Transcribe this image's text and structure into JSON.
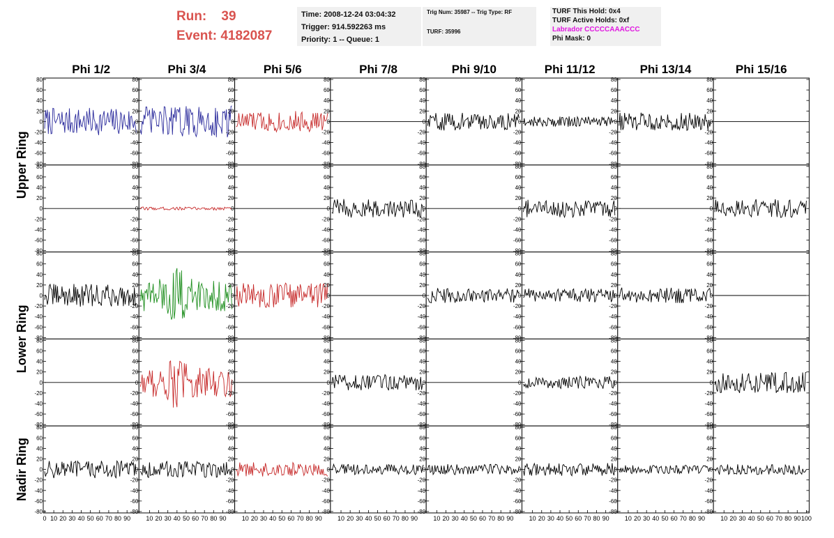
{
  "header": {
    "run_label": "Run:",
    "run_value": "39",
    "event_label": "Event:",
    "event_value": "4182087",
    "time": "Time: 2008-12-24 03:04:32",
    "trigger": "Trigger: 914.592263 ms",
    "priority": "Priority: 1 -- Queue: 1",
    "trig_num": "Trig Num: 35987 -- Trig Type: RF",
    "turf": "TURF: 35996",
    "turf_this_hold": "TURF This Hold: 0x4",
    "turf_active_holds": "TURF Active Holds: 0xf",
    "labrador": "Labrador CCCCCAAACCC",
    "phi_mask": "Phi Mask: 0"
  },
  "chart_data": {
    "type": "line",
    "columns": [
      "Phi 1/2",
      "Phi 3/4",
      "Phi 5/6",
      "Phi 7/8",
      "Phi 9/10",
      "Phi 11/12",
      "Phi 13/14",
      "Phi 15/16"
    ],
    "ring_labels": [
      {
        "label": "Upper Ring",
        "rows": [
          0,
          1
        ]
      },
      {
        "label": "Lower Ring",
        "rows": [
          2,
          3
        ]
      },
      {
        "label": "Nadir Ring",
        "rows": [
          4
        ]
      }
    ],
    "ylim": [
      -80,
      80
    ],
    "xlim": [
      0,
      100
    ],
    "yticks": [
      -80,
      -60,
      -40,
      -20,
      0,
      20,
      40,
      60,
      80
    ],
    "xticks": [
      0,
      10,
      20,
      30,
      40,
      50,
      60,
      70,
      80,
      90,
      100
    ],
    "colors": {
      "black": "#000000",
      "blue": "#2a2a9c",
      "red": "#c62828",
      "green": "#1e8e1e"
    },
    "panels": [
      [
        {
          "color": "blue",
          "amp": 26,
          "active": true
        },
        {
          "color": "blue",
          "amp": 30,
          "active": true
        },
        {
          "color": "red",
          "amp": 20,
          "active": true
        },
        {
          "color": "black",
          "amp": 0,
          "active": false
        },
        {
          "color": "black",
          "amp": 17,
          "active": true
        },
        {
          "color": "black",
          "amp": 10,
          "active": true
        },
        {
          "color": "black",
          "amp": 17,
          "active": true
        },
        {
          "color": "black",
          "amp": 0,
          "active": false
        }
      ],
      [
        {
          "color": "black",
          "amp": 0,
          "active": false
        },
        {
          "color": "red",
          "amp": 3,
          "active": true
        },
        {
          "color": "black",
          "amp": 0,
          "active": false
        },
        {
          "color": "black",
          "amp": 18,
          "active": true
        },
        {
          "color": "black",
          "amp": 0,
          "active": false
        },
        {
          "color": "black",
          "amp": 17,
          "active": true
        },
        {
          "color": "black",
          "amp": 0,
          "active": false
        },
        {
          "color": "black",
          "amp": 18,
          "active": true
        }
      ],
      [
        {
          "color": "black",
          "amp": 22,
          "active": true
        },
        {
          "color": "green",
          "amp": 30,
          "active": true
        },
        {
          "color": "red",
          "amp": 24,
          "active": true
        },
        {
          "color": "black",
          "amp": 0,
          "active": false
        },
        {
          "color": "black",
          "amp": 14,
          "active": true
        },
        {
          "color": "black",
          "amp": 13,
          "active": true
        },
        {
          "color": "black",
          "amp": 15,
          "active": true
        },
        {
          "color": "black",
          "amp": 0,
          "active": false
        }
      ],
      [
        {
          "color": "black",
          "amp": 0,
          "active": false
        },
        {
          "color": "red",
          "amp": 28,
          "active": true
        },
        {
          "color": "black",
          "amp": 0,
          "active": false
        },
        {
          "color": "black",
          "amp": 15,
          "active": true
        },
        {
          "color": "black",
          "amp": 0,
          "active": false
        },
        {
          "color": "black",
          "amp": 12,
          "active": true
        },
        {
          "color": "black",
          "amp": 0,
          "active": false
        },
        {
          "color": "black",
          "amp": 20,
          "active": true
        }
      ],
      [
        {
          "color": "black",
          "amp": 17,
          "active": true
        },
        {
          "color": "black",
          "amp": 16,
          "active": true
        },
        {
          "color": "red",
          "amp": 14,
          "active": true
        },
        {
          "color": "black",
          "amp": 10,
          "active": true
        },
        {
          "color": "black",
          "amp": 10,
          "active": true
        },
        {
          "color": "black",
          "amp": 12,
          "active": true
        },
        {
          "color": "black",
          "amp": 8,
          "active": true
        },
        {
          "color": "black",
          "amp": 10,
          "active": true
        }
      ]
    ]
  }
}
